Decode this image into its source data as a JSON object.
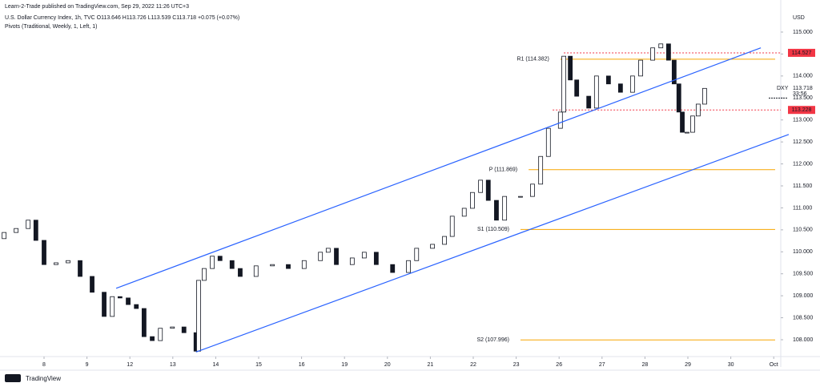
{
  "chart_data": {
    "type": "candlestick",
    "publisher": "Learn-2-Trade published on TradingView.com, Sep 29, 2022 11:26 UTC+3",
    "title": "U.S. Dollar Currency Index, 1h, TVC  O113.646  H113.726  L113.539  C113.718  +0.075 (+0.07%)",
    "indicator": "Pivots (Traditional, Weekly, 1, Left, 1)",
    "currency": "USD",
    "symbol": "DXY",
    "countdown": "33:56",
    "brand": "TradingView",
    "xlim": [
      -1.026,
      17.164
    ],
    "ylim": [
      107.617,
      115.729
    ],
    "xticks": [
      {
        "value": 0,
        "label": "8"
      },
      {
        "value": 1,
        "label": "9"
      },
      {
        "value": 2,
        "label": "12"
      },
      {
        "value": 3,
        "label": "13"
      },
      {
        "value": 4,
        "label": "14"
      },
      {
        "value": 5,
        "label": "15"
      },
      {
        "value": 6,
        "label": "16"
      },
      {
        "value": 7,
        "label": "19"
      },
      {
        "value": 8,
        "label": "20"
      },
      {
        "value": 9,
        "label": "21"
      },
      {
        "value": 10,
        "label": "22"
      },
      {
        "value": 11,
        "label": "23"
      },
      {
        "value": 12,
        "label": "26"
      },
      {
        "value": 13,
        "label": "27"
      },
      {
        "value": 14,
        "label": "28"
      },
      {
        "value": 15,
        "label": "29"
      },
      {
        "value": 16,
        "label": "30"
      },
      {
        "value": 17,
        "label": "Oct"
      }
    ],
    "yticks": [
      {
        "value": 108,
        "label": "108.000"
      },
      {
        "value": 108.5,
        "label": "108.500"
      },
      {
        "value": 109,
        "label": "109.000"
      },
      {
        "value": 109.5,
        "label": "109.500"
      },
      {
        "value": 110,
        "label": "110.000"
      },
      {
        "value": 110.5,
        "label": "110.500"
      },
      {
        "value": 111,
        "label": "111.000"
      },
      {
        "value": 111.5,
        "label": "111.500"
      },
      {
        "value": 112,
        "label": "112.000"
      },
      {
        "value": 112.5,
        "label": "112.500"
      },
      {
        "value": 113,
        "label": "113.000"
      },
      {
        "value": 113.5,
        "label": "113.500"
      },
      {
        "value": 114,
        "label": "114.000"
      },
      {
        "value": 114.5,
        "label": "114.500"
      },
      {
        "value": 115,
        "label": "115.000"
      }
    ],
    "x": [
      -0.93,
      -0.65,
      -0.37,
      -0.19,
      0,
      0.28,
      0.56,
      0.84,
      1.12,
      1.4,
      1.59,
      1.77,
      1.96,
      2.15,
      2.33,
      2.52,
      2.71,
      2.99,
      3.26,
      3.54,
      3.6,
      3.73,
      3.92,
      4.1,
      4.38,
      4.57,
      4.94,
      5.32,
      5.69,
      6.06,
      6.44,
      6.62,
      6.81,
      7.18,
      7.46,
      7.74,
      8.12,
      8.49,
      8.68,
      9.05,
      9.33,
      9.51,
      9.79,
      9.98,
      10.17,
      10.35,
      10.54,
      10.73,
      11.1,
      11.38,
      11.57,
      11.75,
      12.03,
      12.11,
      12.26,
      12.41,
      12.69,
      12.87,
      13.15,
      13.43,
      13.71,
      13.9,
      14.18,
      14.37,
      14.55,
      14.68,
      14.79,
      14.87,
      14.98,
      15.11,
      15.24,
      15.39
    ],
    "open": [
      110.3,
      110.44,
      110.53,
      110.72,
      110.26,
      109.71,
      109.75,
      109.8,
      109.44,
      109.08,
      108.53,
      108.98,
      108.95,
      108.8,
      108.71,
      108.07,
      107.98,
      108.26,
      108.29,
      108.16,
      107.74,
      109.35,
      109.62,
      109.9,
      109.8,
      109.62,
      109.44,
      109.68,
      109.71,
      109.62,
      109.8,
      109.99,
      110.08,
      109.71,
      109.86,
      109.99,
      109.71,
      109.53,
      109.8,
      110.08,
      110.17,
      110.35,
      110.81,
      110.99,
      111.35,
      111.63,
      111.17,
      110.72,
      111.26,
      111.26,
      111.54,
      112.17,
      112.81,
      113.18,
      114.45,
      113.91,
      113.54,
      113.27,
      114,
      113.82,
      113.63,
      114,
      114.36,
      114.64,
      114.73,
      114.36,
      113.82,
      113.18,
      112.72,
      112.72,
      113.09,
      113.36
    ],
    "close": [
      110.44,
      110.53,
      110.72,
      110.26,
      109.71,
      109.75,
      109.8,
      109.44,
      109.08,
      108.53,
      108.98,
      108.95,
      108.8,
      108.71,
      108.07,
      107.98,
      108.26,
      108.29,
      108.16,
      107.74,
      109.35,
      109.62,
      109.9,
      109.8,
      109.62,
      109.44,
      109.68,
      109.71,
      109.62,
      109.8,
      109.99,
      110.08,
      109.71,
      109.86,
      109.99,
      109.71,
      109.53,
      109.8,
      110.08,
      110.17,
      110.35,
      110.81,
      110.99,
      111.35,
      111.63,
      111.17,
      110.72,
      111.26,
      111.26,
      111.54,
      112.17,
      112.81,
      113.18,
      114.45,
      113.91,
      113.54,
      113.27,
      114,
      113.82,
      113.63,
      114,
      114.36,
      114.64,
      114.73,
      114.36,
      113.82,
      113.18,
      112.72,
      112.72,
      113.09,
      113.36,
      113.718
    ],
    "up_color": "#ffffff",
    "down_color": "#131722",
    "trendline_color": "#2962ff",
    "trendlines": [
      {
        "from": [
          1.68,
          109.17
        ],
        "to": [
          16.7,
          114.64
        ]
      },
      {
        "from": [
          3.54,
          107.72
        ],
        "to": [
          17.35,
          112.67
        ]
      }
    ],
    "pivot_color": "#f7a600",
    "pivots": [
      {
        "label": "R1 (114.382)",
        "value": 114.382,
        "start": 12.03
      },
      {
        "label": "P (111.869)",
        "value": 111.869,
        "start": 11.29
      },
      {
        "label": "S1 (110.509)",
        "value": 110.509,
        "start": 11.1
      },
      {
        "label": "S2 (107.996)",
        "value": 107.996,
        "start": 11.1
      }
    ],
    "alert_color": "#f23645",
    "alerts": [
      {
        "value": 114.527,
        "start": 12.11
      },
      {
        "value": 113.228,
        "start": 11.85
      }
    ]
  }
}
